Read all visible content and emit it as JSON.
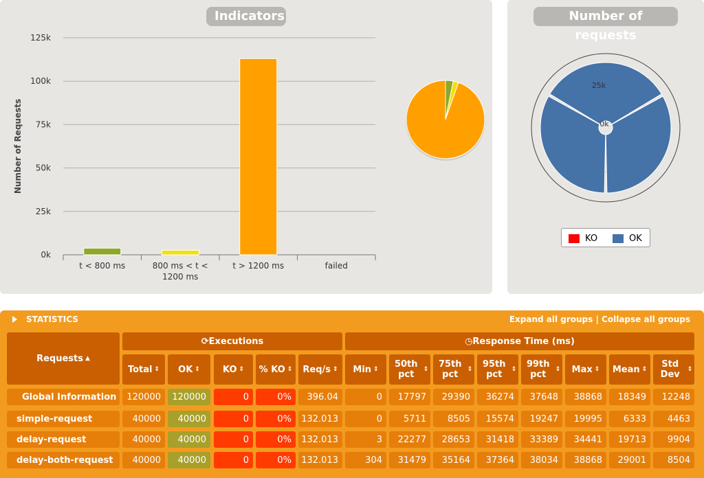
{
  "indicators": {
    "title": "Indicators",
    "chart_data": {
      "type": "bar",
      "ylabel": "Number of Requests",
      "xlabel": "",
      "ylim": [
        0,
        125000
      ],
      "y_ticks": [
        "0k",
        "25k",
        "50k",
        "75k",
        "100k",
        "125k"
      ],
      "y_tick_values": [
        0,
        25000,
        50000,
        75000,
        100000,
        125000
      ],
      "categories": [
        "t < 800 ms",
        "800 ms < t < 1200 ms",
        "t > 1200 ms",
        "failed"
      ],
      "category_lines": [
        [
          "t < 800 ms"
        ],
        [
          "800 ms < t <",
          "1200 ms"
        ],
        [
          "t > 1200 ms"
        ],
        [
          "failed"
        ]
      ],
      "values": [
        3800,
        2600,
        113000,
        0
      ],
      "colors": [
        "#8da82a",
        "#f2e00b",
        "#ffa000",
        "#ff0000"
      ],
      "grid": true
    },
    "pie": {
      "type": "pie",
      "values": [
        3800,
        2600,
        113000,
        0
      ],
      "colors": [
        "#8da82a",
        "#f2e00b",
        "#ffa000",
        "#ff0000"
      ]
    }
  },
  "requests_chart": {
    "title": "Number of requests",
    "chart_data": {
      "type": "polar-bar",
      "categories": [
        "simple-request",
        "delay-request",
        "delay-both-request"
      ],
      "series": [
        {
          "name": "OK",
          "values": [
            40000,
            40000,
            40000
          ],
          "color": "#4572a7"
        },
        {
          "name": "KO",
          "values": [
            0,
            0,
            0
          ],
          "color": "#ff0000"
        }
      ],
      "radial_ticks": [
        "0k",
        "25k"
      ],
      "legend_position": "bottom"
    },
    "legend": [
      {
        "name": "KO",
        "color": "#ff0000"
      },
      {
        "name": "OK",
        "color": "#4572a7"
      }
    ]
  },
  "statistics": {
    "title": "STATISTICS",
    "expand_label": "Expand all groups",
    "separator": " | ",
    "collapse_label": "Collapse all groups",
    "group_executions": "Executions",
    "group_response": "Response Time (ms)",
    "requests_header": "Requests",
    "columns": [
      "Total",
      "OK",
      "KO",
      "% KO",
      "Req/s",
      "Min",
      "50th pct",
      "75th pct",
      "95th pct",
      "99th pct",
      "Max",
      "Mean",
      "Std Dev"
    ],
    "rows": [
      {
        "name": "Global Information",
        "values": [
          "120000",
          "120000",
          "0",
          "0%",
          "396.04",
          "0",
          "17797",
          "29390",
          "36274",
          "37648",
          "38868",
          "18349",
          "12248"
        ]
      },
      {
        "name": "simple-request",
        "values": [
          "40000",
          "40000",
          "0",
          "0%",
          "132.013",
          "0",
          "5711",
          "8505",
          "15574",
          "19247",
          "19995",
          "6333",
          "4463"
        ]
      },
      {
        "name": "delay-request",
        "values": [
          "40000",
          "40000",
          "0",
          "0%",
          "132.013",
          "3",
          "22277",
          "28653",
          "31418",
          "33389",
          "34441",
          "19713",
          "9904"
        ]
      },
      {
        "name": "delay-both-request",
        "values": [
          "40000",
          "40000",
          "0",
          "0%",
          "132.013",
          "304",
          "31479",
          "35164",
          "37364",
          "38034",
          "38868",
          "29001",
          "8504"
        ]
      }
    ]
  }
}
